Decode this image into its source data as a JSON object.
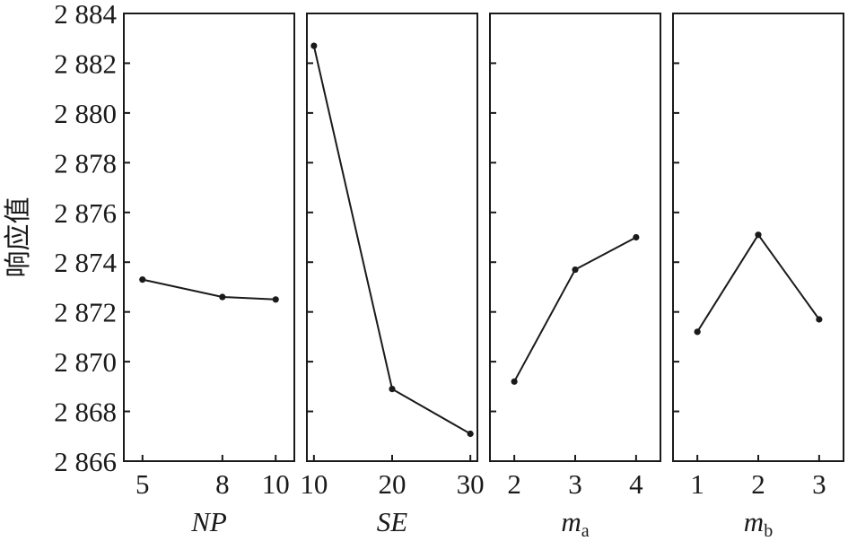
{
  "chart_data": {
    "type": "line",
    "ylabel": "响应值",
    "ylim": [
      2866,
      2884
    ],
    "yticks": [
      2866,
      2868,
      2870,
      2872,
      2874,
      2876,
      2878,
      2880,
      2882,
      2884
    ],
    "ytick_labels": [
      "2 866",
      "2 868",
      "2 870",
      "2 872",
      "2 874",
      "2 876",
      "2 878",
      "2 880",
      "2 882",
      "2 884"
    ],
    "panels": [
      {
        "xlabel": "NP",
        "xlabel_sub": "",
        "xlim": [
          4.3,
          10.7
        ],
        "x": [
          5,
          8,
          10
        ],
        "y": [
          2873.3,
          2872.6,
          2872.5
        ]
      },
      {
        "xlabel": "SE",
        "xlabel_sub": "",
        "xlim": [
          9.1,
          30.9
        ],
        "x": [
          10,
          20,
          30
        ],
        "y": [
          2882.7,
          2868.9,
          2867.1
        ]
      },
      {
        "xlabel": "m",
        "xlabel_sub": "a",
        "xlim": [
          1.6,
          4.4
        ],
        "x": [
          2,
          3,
          4
        ],
        "y": [
          2869.2,
          2873.7,
          2875.0
        ]
      },
      {
        "xlabel": "m",
        "xlabel_sub": "b",
        "xlim": [
          0.6,
          3.4
        ],
        "x": [
          1,
          2,
          3
        ],
        "y": [
          2871.2,
          2875.1,
          2871.7
        ]
      }
    ]
  }
}
